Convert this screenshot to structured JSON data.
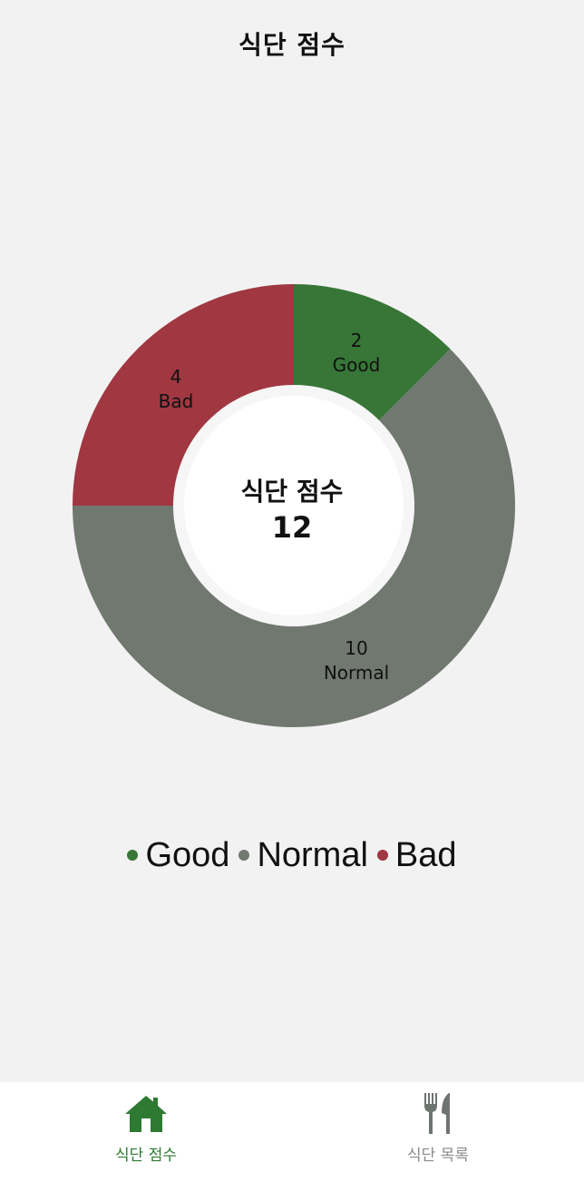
{
  "header": {
    "title": "식단 점수"
  },
  "center": {
    "title": "식단 점수",
    "value": "12"
  },
  "chart_data": {
    "type": "pie",
    "categories": [
      "Good",
      "Normal",
      "Bad"
    ],
    "values": [
      2,
      10,
      4
    ],
    "colors": [
      "#377637",
      "#717870",
      "#a03741"
    ],
    "donut": true,
    "legend": "bottom"
  },
  "legend": {
    "items": [
      {
        "label": "Good",
        "color": "#377637"
      },
      {
        "label": "Normal",
        "color": "#717870"
      },
      {
        "label": "Bad",
        "color": "#a03741"
      }
    ]
  },
  "tabs": [
    {
      "label": "식단 점수",
      "icon": "home-icon",
      "active": true,
      "color": "#2e7a33"
    },
    {
      "label": "식단 목록",
      "icon": "fork-knife-icon",
      "active": false,
      "color": "#8a8a8a"
    }
  ]
}
